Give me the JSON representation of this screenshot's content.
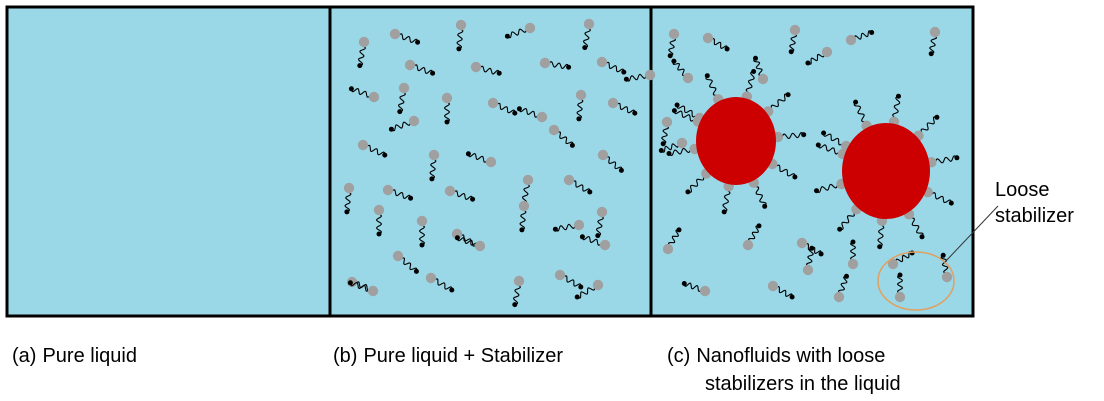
{
  "panels": [
    {
      "id": "a",
      "caption_prefix": "(a)",
      "caption": "Pure liquid"
    },
    {
      "id": "b",
      "caption_prefix": "(b)",
      "caption": "Pure liquid + Stabilizer"
    },
    {
      "id": "c",
      "caption_prefix": "(c)",
      "caption": "Nanofluids with loose",
      "caption_line2": "stabilizers in the liquid"
    }
  ],
  "annotation": {
    "line1": "Loose",
    "line2": "stabilizer"
  },
  "colors": {
    "liquid": "#9ad8e8",
    "border": "#000000",
    "nanoparticle": "#cc0000",
    "head": "#a0a0a0",
    "tail": "#000000",
    "highlight": "#e0a060"
  }
}
